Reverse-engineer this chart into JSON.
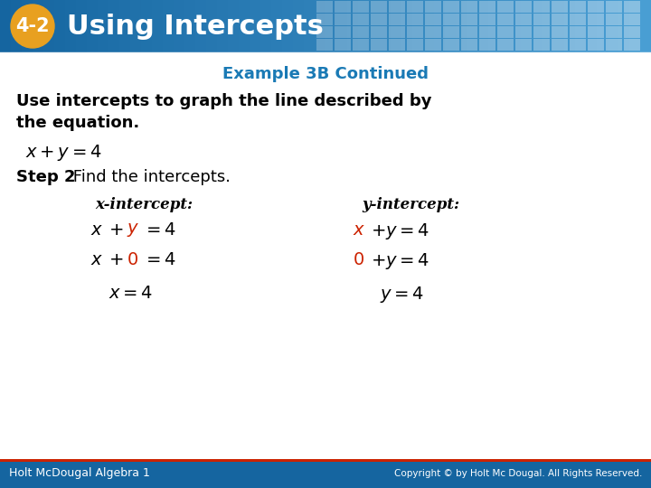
{
  "badge_text": "4-2",
  "title_text": "Using Intercepts",
  "example_text": "Example 3B Continued",
  "body_text_bold": "Use intercepts to graph the line described by\nthe equation.",
  "equation_line": "x + y = 4",
  "step2_bold": "Step 2",
  "step2_normal": " Find the intercepts.",
  "x_intercept_label": "x-intercept:",
  "y_intercept_label": "y-intercept:",
  "footer_left": "Holt McDougal Algebra 1",
  "footer_right": "Copyright © by Holt Mc Dougal. All Rights Reserved.",
  "header_bg": "#1565a0",
  "header_bg2": "#4a9fd4",
  "header_pattern_color": "#2a80c0",
  "header_pattern_light": "#5aaee0",
  "badge_bg": "#e8a020",
  "example_color": "#1a7ab5",
  "red_color": "#cc2200",
  "white": "#ffffff",
  "black": "#000000",
  "footer_bg": "#1565a0",
  "footer_line_color": "#cc2200",
  "fig_w": 7.2,
  "fig_h": 5.4,
  "dpi": 100
}
